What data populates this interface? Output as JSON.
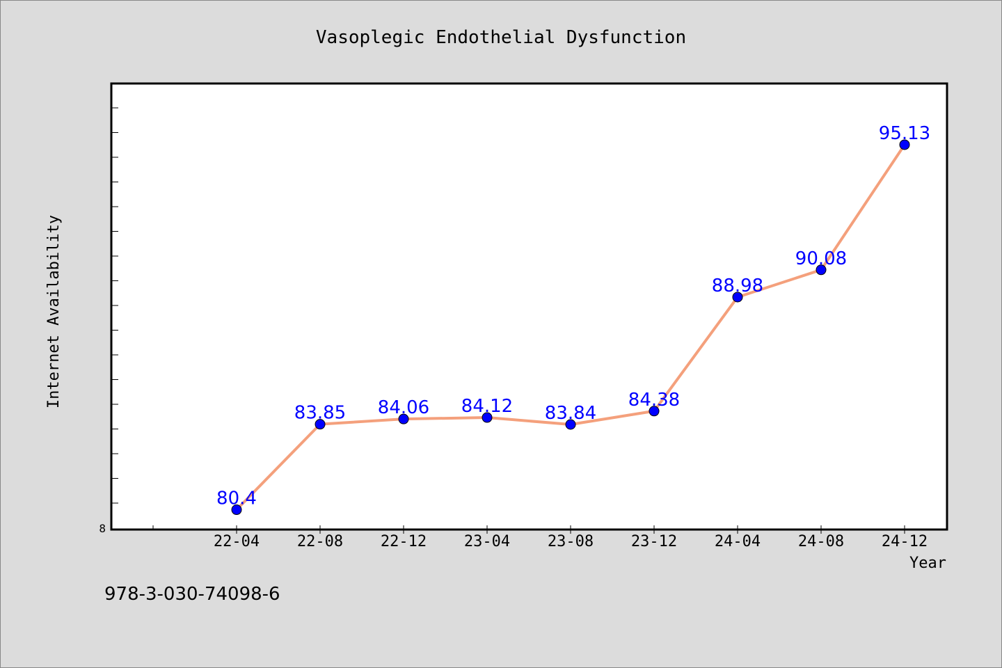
{
  "chart_data": {
    "type": "line",
    "title": "Vasoplegic Endothelial Dysfunction",
    "xlabel": "Year",
    "ylabel": "Internet Availability",
    "categories": [
      "22-04",
      "22-08",
      "22-12",
      "23-04",
      "23-08",
      "23-12",
      "24-04",
      "24-08",
      "24-12"
    ],
    "series": [
      {
        "values": [
          80.4,
          83.85,
          84.06,
          84.12,
          83.84,
          84.38,
          88.98,
          90.08,
          95.13
        ],
        "data_labels": [
          "80.4",
          "83.85",
          "84.06",
          "84.12",
          "83.84",
          "84.38",
          "88.98",
          "90.08",
          "95.13"
        ]
      }
    ],
    "y_tick_label": "8",
    "ylim": [
      79.6,
      97.6
    ],
    "grid": false,
    "line_color": "#f4a07c",
    "marker_color": "#0000ff",
    "label_color": "#0000ff"
  },
  "footer": {
    "text": "978-3-030-74098-6"
  }
}
